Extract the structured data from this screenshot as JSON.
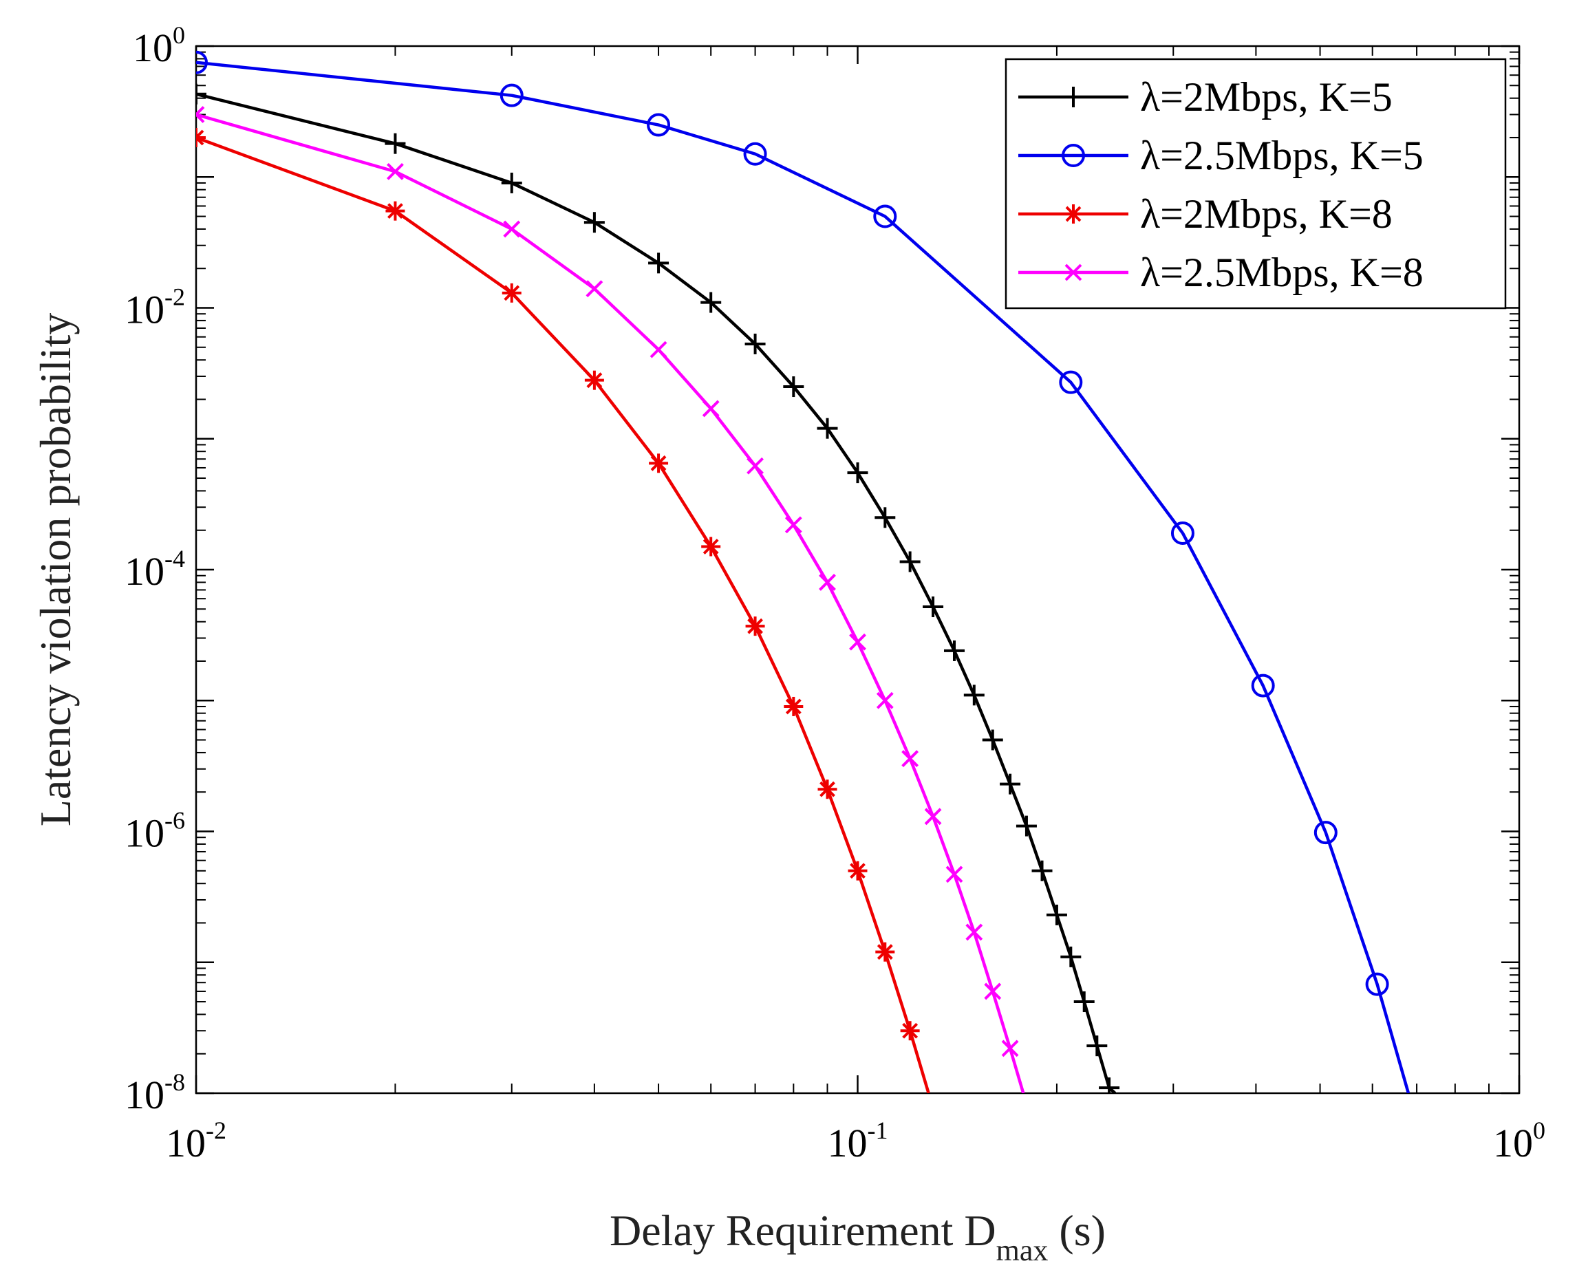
{
  "chart_data": {
    "type": "line",
    "title": "",
    "xlabel": {
      "main": "Delay Requirement D",
      "sub": "max",
      "suffix": " (s)"
    },
    "ylabel": "Latency violation probability",
    "xscale": "log",
    "yscale": "log",
    "xlim": [
      0.01,
      1
    ],
    "ylim": [
      1e-08,
      1
    ],
    "grid": false,
    "legend_position": "top-right",
    "xticks": [
      {
        "value": 0.01,
        "base": "10",
        "exp": "-2"
      },
      {
        "value": 0.1,
        "base": "10",
        "exp": "-1"
      },
      {
        "value": 1,
        "base": "10",
        "exp": "0"
      }
    ],
    "yticks": [
      {
        "value": 1e-08,
        "base": "10",
        "exp": "-8"
      },
      {
        "value": 1e-06,
        "base": "10",
        "exp": "-6"
      },
      {
        "value": 0.0001,
        "base": "10",
        "exp": "-4"
      },
      {
        "value": 0.01,
        "base": "10",
        "exp": "-2"
      },
      {
        "value": 1,
        "base": "10",
        "exp": "0"
      }
    ],
    "series": [
      {
        "name": "λ=2Mbps, K=5",
        "color": "#000000",
        "marker": "plus",
        "x": [
          0.01,
          0.02,
          0.03,
          0.04,
          0.05,
          0.06,
          0.07,
          0.08,
          0.09,
          0.1,
          0.11,
          0.12,
          0.13,
          0.14,
          0.15,
          0.16,
          0.17,
          0.18,
          0.19,
          0.2,
          0.21,
          0.22,
          0.23,
          0.24
        ],
        "y": [
          0.43,
          0.18,
          0.09,
          0.045,
          0.022,
          0.011,
          0.0053,
          0.0025,
          0.0012,
          0.00055,
          0.00025,
          0.000115,
          5.2e-05,
          2.4e-05,
          1.1e-05,
          5e-06,
          2.3e-06,
          1.1e-06,
          5e-07,
          2.3e-07,
          1.1e-07,
          5e-08,
          2.3e-08,
          1.1e-08
        ],
        "line_extends_to": [
          0.245,
          1e-08
        ]
      },
      {
        "name": "λ=2.5Mbps, K=5",
        "color": "#0000ee",
        "marker": "circle",
        "x": [
          0.01,
          0.03,
          0.05,
          0.07,
          0.11,
          0.21,
          0.31,
          0.41,
          0.51,
          0.61
        ],
        "y": [
          0.75,
          0.42,
          0.25,
          0.15,
          0.05,
          0.0027,
          0.00019,
          1.3e-05,
          9.8e-07,
          6.8e-08
        ],
        "line_extends_to": [
          0.68,
          1e-08
        ]
      },
      {
        "name": "λ=2Mbps, K=8",
        "color": "#ee0000",
        "marker": "asterisk",
        "x": [
          0.01,
          0.02,
          0.03,
          0.04,
          0.05,
          0.06,
          0.07,
          0.08,
          0.09,
          0.1,
          0.11,
          0.12
        ],
        "y": [
          0.2,
          0.055,
          0.013,
          0.0028,
          0.00065,
          0.00015,
          3.7e-05,
          9e-06,
          2.1e-06,
          5e-07,
          1.2e-07,
          3e-08
        ],
        "line_extends_to": [
          0.128,
          1e-08
        ]
      },
      {
        "name": "λ=2.5Mbps, K=8",
        "color": "#ff00ff",
        "marker": "x",
        "x": [
          0.01,
          0.02,
          0.03,
          0.04,
          0.05,
          0.06,
          0.07,
          0.08,
          0.09,
          0.1,
          0.11,
          0.12,
          0.13,
          0.14,
          0.15,
          0.16,
          0.17
        ],
        "y": [
          0.3,
          0.11,
          0.04,
          0.014,
          0.0048,
          0.0017,
          0.00062,
          0.00022,
          8e-05,
          2.8e-05,
          1e-05,
          3.6e-06,
          1.3e-06,
          4.7e-07,
          1.7e-07,
          6e-08,
          2.2e-08
        ],
        "line_extends_to": [
          0.178,
          1e-08
        ]
      }
    ]
  }
}
